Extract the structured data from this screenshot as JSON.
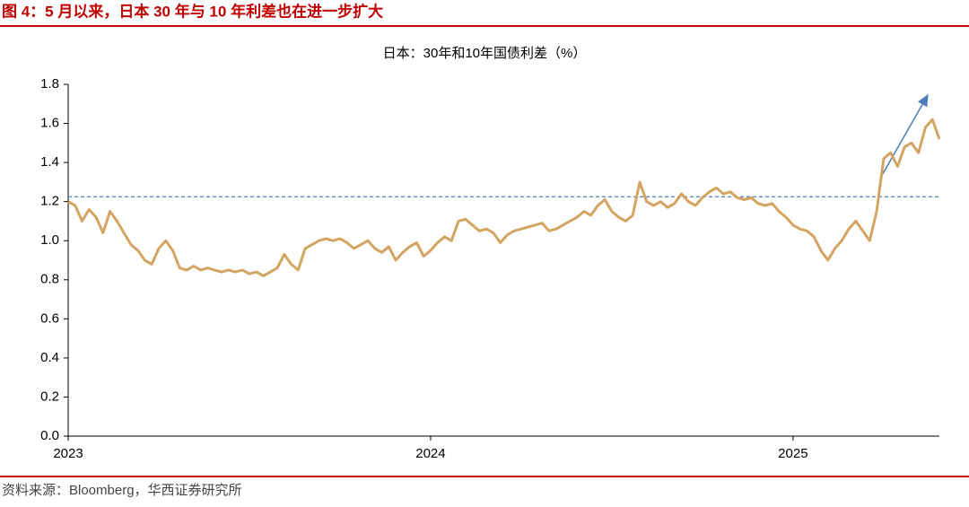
{
  "header": {
    "title": "图 4：5 月以来，日本 30 年与 10 年利差也在进一步扩大"
  },
  "footer": {
    "source": "资料来源：Bloomberg，华西证券研究所"
  },
  "chart_data": {
    "type": "line",
    "title": "日本：30年和10年国债利差（%）",
    "categories": [
      "2023",
      null,
      null,
      null,
      null,
      null,
      null,
      null,
      null,
      null,
      null,
      null,
      null,
      null,
      null,
      null,
      null,
      null,
      null,
      null,
      null,
      null,
      null,
      null,
      null,
      null,
      null,
      null,
      null,
      null,
      null,
      null,
      null,
      null,
      null,
      null,
      null,
      null,
      null,
      null,
      null,
      null,
      null,
      null,
      null,
      null,
      null,
      null,
      null,
      null,
      null,
      null,
      "2024",
      null,
      null,
      null,
      null,
      null,
      null,
      null,
      null,
      null,
      null,
      null,
      null,
      null,
      null,
      null,
      null,
      null,
      null,
      null,
      null,
      null,
      null,
      null,
      null,
      null,
      null,
      null,
      null,
      null,
      null,
      null,
      null,
      null,
      null,
      null,
      null,
      null,
      null,
      null,
      null,
      null,
      null,
      null,
      null,
      null,
      null,
      null,
      null,
      null,
      null,
      null,
      "2025",
      null,
      null,
      null,
      null,
      null,
      null,
      null,
      null,
      null,
      null,
      null,
      null,
      null,
      null,
      null,
      null,
      null,
      null,
      null,
      null,
      null
    ],
    "series": [
      {
        "name": "日本：30年和10年国债利差",
        "color": "#d4a462",
        "values": [
          1.2,
          1.18,
          1.1,
          1.16,
          1.12,
          1.04,
          1.15,
          1.1,
          1.04,
          0.98,
          0.95,
          0.9,
          0.88,
          0.96,
          1.0,
          0.95,
          0.86,
          0.85,
          0.87,
          0.85,
          0.86,
          0.85,
          0.84,
          0.85,
          0.84,
          0.85,
          0.83,
          0.84,
          0.82,
          0.84,
          0.86,
          0.93,
          0.88,
          0.85,
          0.96,
          0.98,
          1.0,
          1.01,
          1.0,
          1.01,
          0.99,
          0.96,
          0.98,
          1.0,
          0.96,
          0.94,
          0.97,
          0.9,
          0.94,
          0.97,
          0.99,
          0.92,
          0.95,
          0.99,
          1.02,
          1.0,
          1.1,
          1.11,
          1.08,
          1.05,
          1.06,
          1.04,
          0.99,
          1.03,
          1.05,
          1.06,
          1.07,
          1.08,
          1.09,
          1.05,
          1.06,
          1.08,
          1.1,
          1.12,
          1.15,
          1.13,
          1.18,
          1.21,
          1.15,
          1.12,
          1.1,
          1.13,
          1.3,
          1.2,
          1.18,
          1.2,
          1.17,
          1.19,
          1.24,
          1.2,
          1.18,
          1.22,
          1.25,
          1.27,
          1.24,
          1.25,
          1.22,
          1.21,
          1.22,
          1.19,
          1.18,
          1.19,
          1.15,
          1.12,
          1.08,
          1.06,
          1.05,
          1.02,
          0.95,
          0.9,
          0.96,
          1.0,
          1.06,
          1.1,
          1.05,
          1.0,
          1.15,
          1.42,
          1.45,
          1.38,
          1.48,
          1.5,
          1.45,
          1.58,
          1.62,
          1.52
        ]
      }
    ],
    "reference_line": {
      "value": 1.225,
      "color": "#4a7ebb"
    },
    "ylim": [
      0,
      1.8
    ],
    "yticks": [
      {
        "value": 0,
        "label": "0.0"
      },
      {
        "value": 0.2,
        "label": "0.2"
      },
      {
        "value": 0.4,
        "label": "0.4"
      },
      {
        "value": 0.6,
        "label": "0.6"
      },
      {
        "value": 0.8,
        "label": "0.8"
      },
      {
        "value": 1,
        "label": "1.0"
      },
      {
        "value": 1.2,
        "label": "1.2"
      },
      {
        "value": 1.4,
        "label": "1.4"
      },
      {
        "value": 1.6,
        "label": "1.6"
      },
      {
        "value": 1.8,
        "label": "1.8"
      }
    ],
    "grid": false
  }
}
